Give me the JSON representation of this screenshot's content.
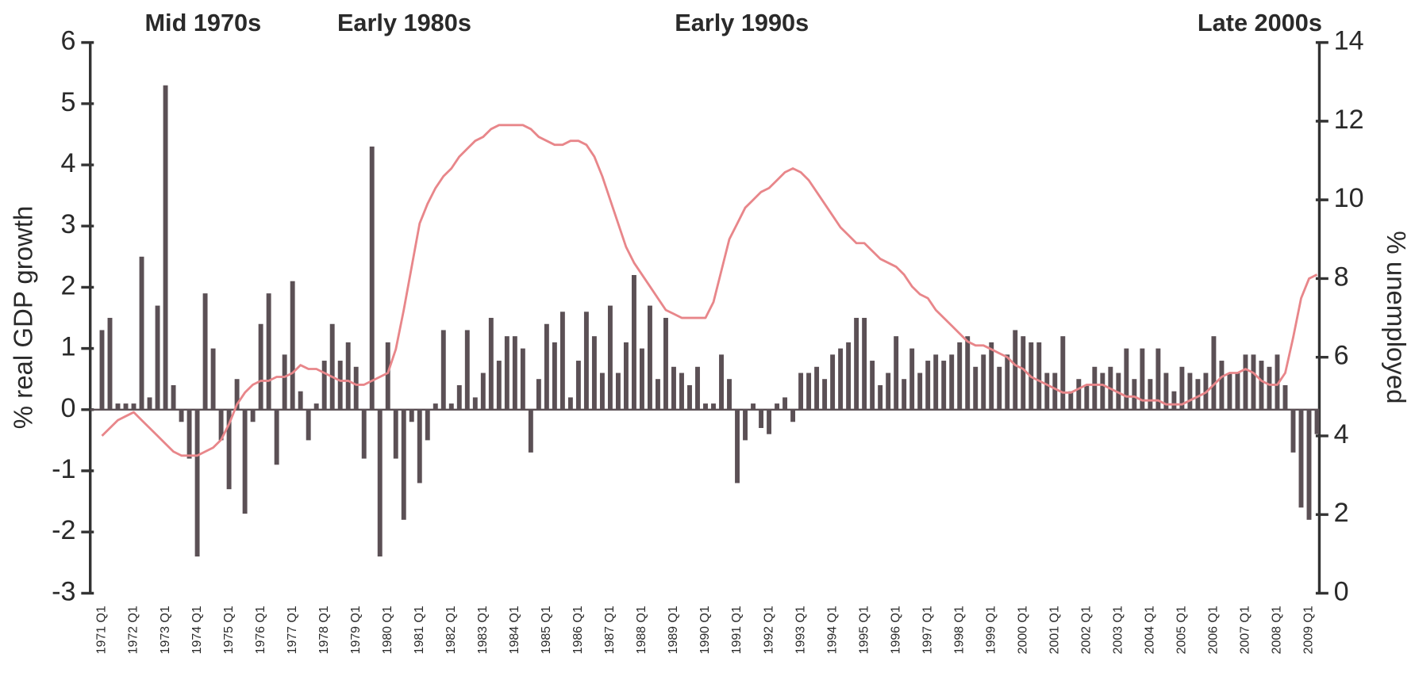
{
  "chart_data": {
    "type": "bar",
    "annotations": [
      "Mid 1970s",
      "Early 1980s",
      "Early 1990s",
      "Late 2000s"
    ],
    "y_label": "% real GDP growth",
    "y2_label": "% unemployed",
    "categories": [
      "1971 Q1",
      null,
      null,
      null,
      "1972 Q1",
      null,
      null,
      null,
      "1973 Q1",
      null,
      null,
      null,
      "1974 Q1",
      null,
      null,
      null,
      "1975 Q1",
      null,
      null,
      null,
      "1976 Q1",
      null,
      null,
      null,
      "1977 Q1",
      null,
      null,
      null,
      "1978 Q1",
      null,
      null,
      null,
      "1979 Q1",
      null,
      null,
      null,
      "1980 Q1",
      null,
      null,
      null,
      "1981 Q1",
      null,
      null,
      null,
      "1982 Q1",
      null,
      null,
      null,
      "1983 Q1",
      null,
      null,
      null,
      "1984 Q1",
      null,
      null,
      null,
      "1985 Q1",
      null,
      null,
      null,
      "1986 Q1",
      null,
      null,
      null,
      "1987 Q1",
      null,
      null,
      null,
      "1988 Q1",
      null,
      null,
      null,
      "1989 Q1",
      null,
      null,
      null,
      "1990 Q1",
      null,
      null,
      null,
      "1991 Q1",
      null,
      null,
      null,
      "1992 Q1",
      null,
      null,
      null,
      "1993 Q1",
      null,
      null,
      null,
      "1994 Q1",
      null,
      null,
      null,
      "1995 Q1",
      null,
      null,
      null,
      "1996 Q1",
      null,
      null,
      null,
      "1997 Q1",
      null,
      null,
      null,
      "1998 Q1",
      null,
      null,
      null,
      "1999 Q1",
      null,
      null,
      null,
      "2000 Q1",
      null,
      null,
      null,
      "2001 Q1",
      null,
      null,
      null,
      "2002 Q1",
      null,
      null,
      null,
      "2003 Q1",
      null,
      null,
      null,
      "2004 Q1",
      null,
      null,
      null,
      "2005 Q1",
      null,
      null,
      null,
      "2006 Q1",
      null,
      null,
      null,
      "2007 Q1",
      null,
      null,
      null,
      "2008 Q1",
      null,
      null,
      null,
      "2009 Q1",
      null
    ],
    "series": [
      {
        "type": "bar",
        "color": "#5b5055",
        "values": [
          1.3,
          1.5,
          0.1,
          0.1,
          0.1,
          2.5,
          0.2,
          1.7,
          5.3,
          0.4,
          -0.2,
          -0.8,
          -2.4,
          1.9,
          1.0,
          -0.5,
          -1.3,
          0.5,
          -1.7,
          -0.2,
          1.4,
          1.9,
          -0.9,
          0.9,
          2.1,
          0.3,
          -0.5,
          0.1,
          0.8,
          1.4,
          0.8,
          1.1,
          0.7,
          -0.8,
          4.3,
          -2.4,
          1.1,
          -0.8,
          -1.8,
          -0.2,
          -1.2,
          -0.5,
          0.1,
          1.3,
          0.1,
          0.4,
          1.3,
          0.2,
          0.6,
          1.5,
          0.8,
          1.2,
          1.2,
          1.0,
          -0.7,
          0.5,
          1.4,
          1.1,
          1.6,
          0.2,
          0.8,
          1.6,
          1.2,
          0.6,
          1.7,
          0.6,
          1.1,
          2.2,
          1.0,
          1.7,
          0.5,
          1.5,
          0.7,
          0.6,
          0.4,
          0.7,
          0.1,
          0.1,
          0.9,
          0.5,
          -1.2,
          -0.5,
          0.1,
          -0.3,
          -0.4,
          0.1,
          0.2,
          -0.2,
          0.6,
          0.6,
          0.7,
          0.5,
          0.9,
          1.0,
          1.1,
          1.5,
          1.5,
          0.8,
          0.4,
          0.6,
          1.2,
          0.5,
          1.0,
          0.6,
          0.8,
          0.9,
          0.8,
          0.9,
          1.1,
          1.2,
          0.7,
          0.9,
          1.1,
          0.7,
          0.9,
          1.3,
          1.2,
          1.1,
          1.1,
          0.6,
          0.6,
          1.2,
          0.3,
          0.5,
          0.4,
          0.7,
          0.6,
          0.7,
          0.6,
          1.0,
          0.5,
          1.0,
          0.5,
          1.0,
          0.6,
          0.3,
          0.7,
          0.6,
          0.5,
          0.6,
          1.2,
          0.8,
          0.6,
          0.6,
          0.9,
          0.9,
          0.8,
          0.7,
          0.9,
          0.4,
          -0.7,
          -1.6,
          -1.8,
          -0.4
        ]
      },
      {
        "type": "line",
        "axis": "y2",
        "color": "#e8868a",
        "values": [
          4.0,
          4.2,
          4.4,
          4.5,
          4.6,
          4.4,
          4.2,
          4.0,
          3.8,
          3.6,
          3.5,
          3.5,
          3.5,
          3.6,
          3.7,
          3.9,
          4.3,
          4.8,
          5.1,
          5.3,
          5.4,
          5.4,
          5.5,
          5.5,
          5.6,
          5.8,
          5.7,
          5.7,
          5.6,
          5.5,
          5.4,
          5.4,
          5.3,
          5.3,
          5.4,
          5.5,
          5.6,
          6.2,
          7.2,
          8.3,
          9.4,
          9.9,
          10.3,
          10.6,
          10.8,
          11.1,
          11.3,
          11.5,
          11.6,
          11.8,
          11.9,
          11.9,
          11.9,
          11.9,
          11.8,
          11.6,
          11.5,
          11.4,
          11.4,
          11.5,
          11.5,
          11.4,
          11.1,
          10.6,
          10.0,
          9.4,
          8.8,
          8.4,
          8.1,
          7.8,
          7.5,
          7.2,
          7.1,
          7.0,
          7.0,
          7.0,
          7.0,
          7.4,
          8.2,
          9.0,
          9.4,
          9.8,
          10.0,
          10.2,
          10.3,
          10.5,
          10.7,
          10.8,
          10.7,
          10.5,
          10.2,
          9.9,
          9.6,
          9.3,
          9.1,
          8.9,
          8.9,
          8.7,
          8.5,
          8.4,
          8.3,
          8.1,
          7.8,
          7.6,
          7.5,
          7.2,
          7.0,
          6.8,
          6.6,
          6.4,
          6.3,
          6.3,
          6.2,
          6.1,
          6.0,
          5.8,
          5.7,
          5.5,
          5.4,
          5.3,
          5.2,
          5.1,
          5.1,
          5.2,
          5.3,
          5.3,
          5.3,
          5.2,
          5.1,
          5.0,
          5.0,
          4.9,
          4.9,
          4.9,
          4.8,
          4.8,
          4.8,
          4.9,
          5.0,
          5.1,
          5.3,
          5.5,
          5.6,
          5.6,
          5.7,
          5.6,
          5.4,
          5.3,
          5.3,
          5.6,
          6.5,
          7.5,
          8.0,
          8.1
        ]
      }
    ],
    "ylim": [
      -3,
      6
    ],
    "yticks": [
      -3,
      -2,
      -1,
      0,
      1,
      2,
      3,
      4,
      5,
      6
    ],
    "y2lim": [
      0,
      14
    ],
    "y2ticks": [
      0,
      2,
      4,
      6,
      8,
      10,
      12,
      14
    ]
  }
}
